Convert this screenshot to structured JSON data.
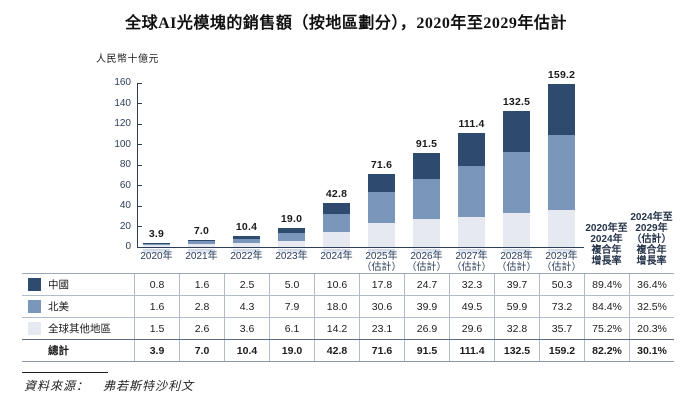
{
  "title": "全球AI光模塊的銷售額（按地區劃分），2020年至2029年估計",
  "unit_label": "人民幣十億元",
  "colors": {
    "china": "#2e4a6e",
    "north_america": "#7b96bb",
    "rest_of_world": "#e6eaf0",
    "axis": "#2c3e5a"
  },
  "chart_data": {
    "type": "bar",
    "stacked": true,
    "title": "全球AI光模塊的銷售額（按地區劃分），2020年至2029年估計",
    "ylabel": "人民幣十億元",
    "ylim": [
      0,
      160
    ],
    "ytick_step": 20,
    "grid": false,
    "legend_position": "table-left",
    "categories": [
      "2020年",
      "2021年",
      "2022年",
      "2023年",
      "2024年",
      "2025年\n（估計）",
      "2026年\n（估計）",
      "2027年\n（估計）",
      "2028年\n（估計）",
      "2029年\n（估計）"
    ],
    "series": [
      {
        "name": "中國",
        "color_key": "china",
        "values": [
          0.8,
          1.6,
          2.5,
          5.0,
          10.6,
          17.8,
          24.7,
          32.3,
          39.7,
          50.3
        ]
      },
      {
        "name": "北美",
        "color_key": "north_america",
        "values": [
          1.6,
          2.8,
          4.3,
          7.9,
          18.0,
          30.6,
          39.9,
          49.5,
          59.9,
          73.2
        ]
      },
      {
        "name": "全球其他地區",
        "color_key": "rest_of_world",
        "values": [
          1.5,
          2.6,
          3.6,
          6.1,
          14.2,
          23.1,
          26.9,
          29.6,
          32.8,
          35.7
        ]
      }
    ],
    "totals": [
      3.9,
      7.0,
      10.4,
      19.0,
      42.8,
      71.6,
      91.5,
      111.4,
      132.5,
      159.2
    ]
  },
  "cagr_headers": [
    {
      "lines": [
        "2020年至",
        "2024年",
        "複合年",
        "增長率"
      ]
    },
    {
      "lines": [
        "2024年至",
        "2029年",
        "（估計）",
        "複合年",
        "增長率"
      ]
    }
  ],
  "table": {
    "rows": [
      {
        "label": "中國",
        "swatch": "china",
        "bold": false,
        "values": [
          "0.8",
          "1.6",
          "2.5",
          "5.0",
          "10.6",
          "17.8",
          "24.7",
          "32.3",
          "39.7",
          "50.3",
          "89.4%",
          "36.4%"
        ]
      },
      {
        "label": "北美",
        "swatch": "north_america",
        "bold": false,
        "values": [
          "1.6",
          "2.8",
          "4.3",
          "7.9",
          "18.0",
          "30.6",
          "39.9",
          "49.5",
          "59.9",
          "73.2",
          "84.4%",
          "32.5%"
        ]
      },
      {
        "label": "全球其他地區",
        "swatch": "rest_of_world",
        "bold": false,
        "values": [
          "1.5",
          "2.6",
          "3.6",
          "6.1",
          "14.2",
          "23.1",
          "26.9",
          "29.6",
          "32.8",
          "35.7",
          "75.2%",
          "20.3%"
        ]
      },
      {
        "label": "總計",
        "swatch": null,
        "bold": true,
        "values": [
          "3.9",
          "7.0",
          "10.4",
          "19.0",
          "42.8",
          "71.6",
          "91.5",
          "111.4",
          "132.5",
          "159.2",
          "82.2%",
          "30.1%"
        ]
      }
    ]
  },
  "source": {
    "label": "資料來源：",
    "name": "弗若斯特沙利文"
  }
}
